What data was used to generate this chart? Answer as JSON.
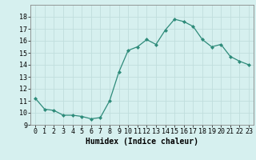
{
  "x": [
    0,
    1,
    2,
    3,
    4,
    5,
    6,
    7,
    8,
    9,
    10,
    11,
    12,
    13,
    14,
    15,
    16,
    17,
    18,
    19,
    20,
    21,
    22,
    23
  ],
  "y": [
    11.2,
    10.3,
    10.2,
    9.8,
    9.8,
    9.7,
    9.5,
    9.6,
    11.0,
    13.4,
    15.2,
    15.5,
    16.1,
    15.7,
    16.9,
    17.8,
    17.6,
    17.2,
    16.1,
    15.5,
    15.7,
    14.7,
    14.3,
    14.0
  ],
  "line_color": "#2e8b7a",
  "marker": "D",
  "markersize": 2.0,
  "linewidth": 0.9,
  "bg_color": "#d6f0ef",
  "grid_color": "#c0dedd",
  "xlabel": "Humidex (Indice chaleur)",
  "xlabel_fontsize": 7,
  "ylim": [
    9,
    19
  ],
  "xlim": [
    -0.5,
    23.5
  ],
  "yticks": [
    9,
    10,
    11,
    12,
    13,
    14,
    15,
    16,
    17,
    18
  ],
  "xtick_labels": [
    "0",
    "1",
    "2",
    "3",
    "4",
    "5",
    "6",
    "7",
    "8",
    "9",
    "10",
    "11",
    "12",
    "13",
    "14",
    "15",
    "16",
    "17",
    "18",
    "19",
    "20",
    "21",
    "22",
    "23"
  ],
  "tick_fontsize": 6
}
